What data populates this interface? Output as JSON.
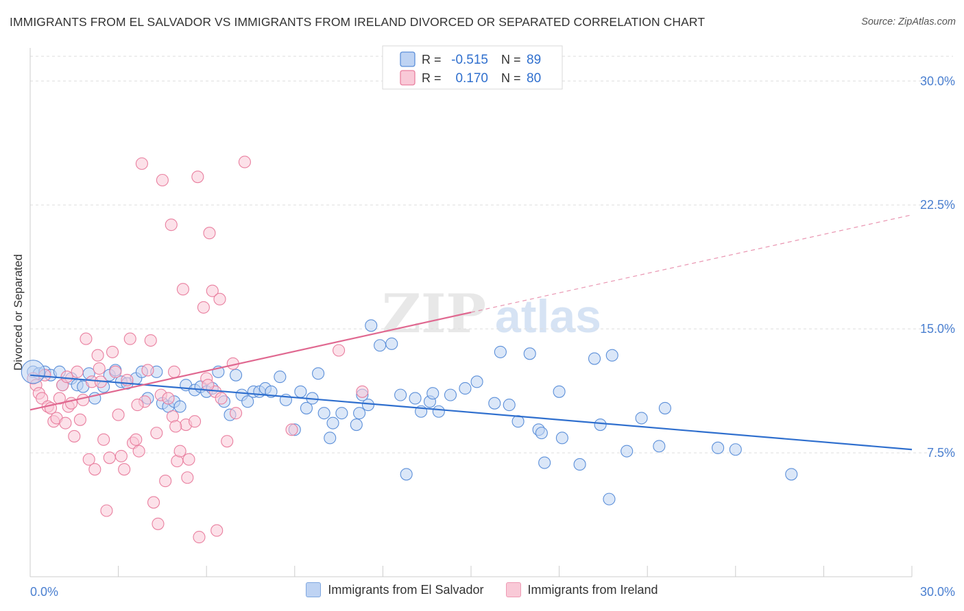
{
  "header": {
    "title": "IMMIGRANTS FROM EL SALVADOR VS IMMIGRANTS FROM IRELAND DIVORCED OR SEPARATED CORRELATION CHART",
    "source": "Source: ZipAtlas.com"
  },
  "chart_data": {
    "type": "scatter",
    "ylabel": "Divorced or Separated",
    "xlabel": "",
    "xlim": [
      0,
      30
    ],
    "ylim": [
      0,
      32
    ],
    "x_tick_labels": [
      "0.0%",
      "30.0%"
    ],
    "y_ticks": [
      7.5,
      15.0,
      22.5,
      30.0
    ],
    "y_tick_labels": [
      "7.5%",
      "15.0%",
      "22.5%",
      "30.0%"
    ],
    "grid": true,
    "watermark": {
      "part1": "ZIP",
      "part2": "atlas"
    },
    "legend_stats": [
      {
        "r_label": "R =",
        "r_value": "-0.515",
        "n_label": "N =",
        "n_value": "89"
      },
      {
        "r_label": "R =",
        "r_value": "0.170",
        "n_label": "N =",
        "n_value": "80"
      }
    ],
    "series": [
      {
        "name": "Immigrants from El Salvador",
        "color": "#5b8fd9",
        "fill": "#bed3f3",
        "line_color": "#2f6fce",
        "trend": {
          "x0": 0,
          "y0": 12.2,
          "x1": 30,
          "y1": 7.7,
          "solid_until": 30
        },
        "points": [
          [
            0.1,
            12.4
          ],
          [
            0.3,
            12.3
          ],
          [
            0.5,
            12.4
          ],
          [
            0.7,
            12.2
          ],
          [
            1.0,
            12.4
          ],
          [
            1.1,
            11.6
          ],
          [
            1.4,
            12.0
          ],
          [
            1.6,
            11.6
          ],
          [
            1.8,
            11.5
          ],
          [
            2.0,
            12.3
          ],
          [
            2.2,
            10.8
          ],
          [
            2.5,
            11.5
          ],
          [
            2.7,
            12.2
          ],
          [
            2.9,
            12.5
          ],
          [
            3.1,
            11.8
          ],
          [
            3.3,
            11.7
          ],
          [
            3.6,
            12.0
          ],
          [
            3.8,
            12.4
          ],
          [
            4.0,
            10.8
          ],
          [
            4.3,
            12.4
          ],
          [
            4.5,
            10.5
          ],
          [
            4.7,
            10.3
          ],
          [
            4.9,
            10.6
          ],
          [
            5.1,
            10.3
          ],
          [
            5.3,
            11.6
          ],
          [
            5.6,
            11.3
          ],
          [
            5.8,
            11.5
          ],
          [
            6.0,
            11.2
          ],
          [
            6.2,
            11.4
          ],
          [
            6.4,
            12.4
          ],
          [
            6.6,
            10.6
          ],
          [
            6.8,
            9.8
          ],
          [
            7.0,
            12.2
          ],
          [
            7.2,
            11.0
          ],
          [
            7.4,
            10.6
          ],
          [
            7.6,
            11.2
          ],
          [
            7.8,
            11.2
          ],
          [
            8.0,
            11.4
          ],
          [
            8.2,
            11.2
          ],
          [
            8.5,
            12.1
          ],
          [
            8.7,
            10.7
          ],
          [
            9.0,
            8.9
          ],
          [
            9.2,
            11.2
          ],
          [
            9.4,
            10.2
          ],
          [
            9.6,
            10.8
          ],
          [
            9.8,
            12.3
          ],
          [
            10.0,
            9.9
          ],
          [
            10.2,
            8.4
          ],
          [
            10.3,
            9.3
          ],
          [
            10.6,
            9.9
          ],
          [
            11.1,
            9.2
          ],
          [
            11.2,
            9.9
          ],
          [
            11.5,
            10.4
          ],
          [
            11.3,
            11.0
          ],
          [
            11.6,
            15.2
          ],
          [
            11.9,
            14.0
          ],
          [
            12.3,
            14.1
          ],
          [
            12.6,
            11.0
          ],
          [
            12.8,
            6.2
          ],
          [
            13.1,
            10.8
          ],
          [
            13.3,
            10.0
          ],
          [
            13.6,
            10.6
          ],
          [
            13.7,
            11.1
          ],
          [
            13.9,
            10.0
          ],
          [
            14.3,
            11.0
          ],
          [
            14.8,
            11.4
          ],
          [
            15.2,
            11.8
          ],
          [
            15.8,
            10.5
          ],
          [
            16.0,
            13.6
          ],
          [
            16.3,
            10.4
          ],
          [
            16.6,
            9.4
          ],
          [
            17.0,
            13.5
          ],
          [
            17.3,
            8.9
          ],
          [
            17.4,
            8.7
          ],
          [
            17.5,
            6.9
          ],
          [
            18.0,
            11.2
          ],
          [
            18.1,
            8.4
          ],
          [
            18.7,
            6.8
          ],
          [
            19.2,
            13.2
          ],
          [
            19.4,
            9.2
          ],
          [
            19.8,
            13.4
          ],
          [
            19.7,
            4.7
          ],
          [
            20.3,
            7.6
          ],
          [
            20.8,
            9.6
          ],
          [
            21.4,
            7.9
          ],
          [
            21.6,
            10.2
          ],
          [
            23.4,
            7.8
          ],
          [
            24.0,
            7.7
          ],
          [
            25.9,
            6.2
          ]
        ]
      },
      {
        "name": "Immigrants from Ireland",
        "color": "#e97f9f",
        "fill": "#f9c9d7",
        "line_color": "#e06890",
        "trend": {
          "x0": 0,
          "y0": 10.1,
          "x1": 30,
          "y1": 21.9,
          "solid_until": 15
        },
        "points": [
          [
            0.1,
            12.0
          ],
          [
            0.2,
            11.6
          ],
          [
            0.3,
            11.1
          ],
          [
            0.4,
            10.8
          ],
          [
            0.5,
            12.2
          ],
          [
            0.6,
            10.3
          ],
          [
            0.7,
            10.2
          ],
          [
            0.8,
            9.4
          ],
          [
            0.9,
            9.6
          ],
          [
            1.0,
            10.8
          ],
          [
            1.1,
            11.6
          ],
          [
            1.2,
            9.3
          ],
          [
            1.3,
            10.3
          ],
          [
            1.4,
            10.5
          ],
          [
            1.5,
            8.5
          ],
          [
            1.6,
            12.4
          ],
          [
            1.7,
            9.5
          ],
          [
            1.8,
            10.7
          ],
          [
            1.9,
            14.4
          ],
          [
            2.0,
            7.1
          ],
          [
            2.1,
            11.8
          ],
          [
            2.2,
            6.5
          ],
          [
            2.3,
            13.4
          ],
          [
            2.4,
            11.8
          ],
          [
            2.5,
            8.3
          ],
          [
            2.6,
            4.0
          ],
          [
            2.7,
            7.2
          ],
          [
            2.8,
            13.6
          ],
          [
            2.9,
            12.4
          ],
          [
            3.0,
            9.8
          ],
          [
            3.1,
            7.3
          ],
          [
            3.2,
            6.5
          ],
          [
            3.3,
            11.9
          ],
          [
            3.4,
            14.4
          ],
          [
            3.5,
            8.1
          ],
          [
            3.6,
            8.3
          ],
          [
            3.7,
            7.6
          ],
          [
            3.8,
            25.0
          ],
          [
            3.9,
            10.6
          ],
          [
            4.0,
            12.5
          ],
          [
            4.1,
            14.3
          ],
          [
            4.2,
            4.5
          ],
          [
            4.3,
            8.7
          ],
          [
            4.35,
            3.2
          ],
          [
            4.45,
            11.0
          ],
          [
            4.5,
            24.0
          ],
          [
            4.6,
            5.8
          ],
          [
            4.7,
            10.8
          ],
          [
            4.8,
            21.3
          ],
          [
            4.85,
            9.7
          ],
          [
            4.9,
            12.4
          ],
          [
            5.0,
            7.0
          ],
          [
            5.1,
            7.6
          ],
          [
            5.2,
            17.4
          ],
          [
            5.3,
            9.2
          ],
          [
            5.35,
            6.0
          ],
          [
            5.4,
            7.1
          ],
          [
            5.6,
            9.4
          ],
          [
            5.7,
            24.2
          ],
          [
            5.75,
            2.4
          ],
          [
            5.9,
            16.3
          ],
          [
            6.0,
            12.0
          ],
          [
            6.1,
            20.8
          ],
          [
            6.2,
            17.3
          ],
          [
            6.3,
            11.2
          ],
          [
            6.35,
            2.8
          ],
          [
            6.45,
            16.8
          ],
          [
            6.5,
            10.8
          ],
          [
            6.7,
            8.2
          ],
          [
            6.9,
            12.9
          ],
          [
            7.0,
            9.9
          ],
          [
            7.3,
            25.1
          ],
          [
            8.9,
            8.9
          ],
          [
            10.5,
            13.7
          ],
          [
            11.3,
            11.2
          ],
          [
            1.25,
            12.1
          ],
          [
            2.35,
            12.6
          ],
          [
            3.65,
            10.4
          ],
          [
            4.95,
            9.1
          ],
          [
            6.05,
            11.6
          ]
        ]
      }
    ]
  }
}
